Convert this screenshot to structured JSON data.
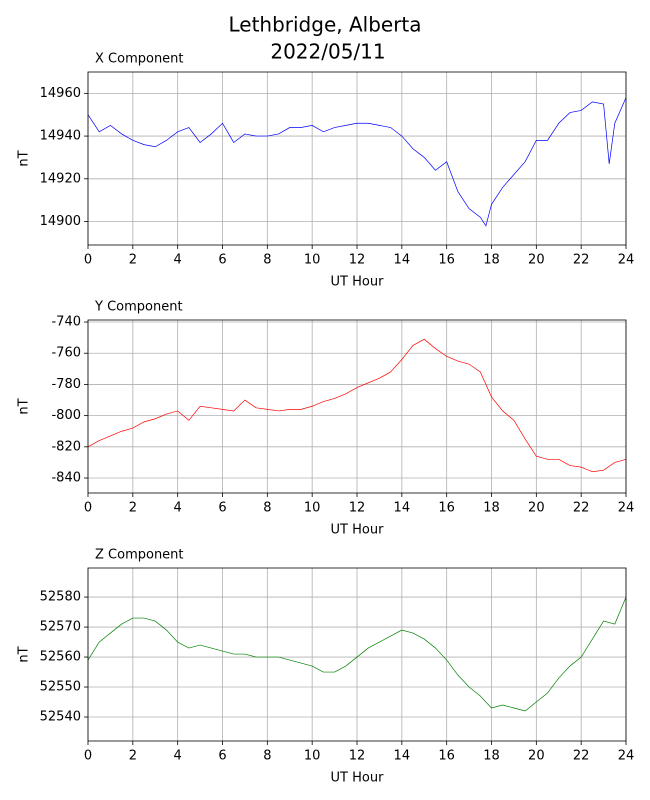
{
  "title": "Lethbridge, Alberta",
  "subtitle": "2022/05/11",
  "chart_data": [
    {
      "type": "line",
      "title": "X Component",
      "x_label": "UT Hour",
      "y_label": "nT",
      "color": "#0000ff",
      "grid": true,
      "xlim": [
        0,
        24
      ],
      "xticks": [
        0,
        2,
        4,
        6,
        8,
        10,
        12,
        14,
        16,
        18,
        20,
        22,
        24
      ],
      "ylim": [
        14889,
        14970
      ],
      "yticks": [
        14900,
        14920,
        14940,
        14960
      ],
      "x": [
        0,
        0.5,
        1,
        1.5,
        2,
        2.5,
        3,
        3.5,
        4,
        4.5,
        5,
        5.5,
        6,
        6.5,
        7,
        7.5,
        8,
        8.5,
        9,
        9.5,
        10,
        10.5,
        11,
        11.5,
        12,
        12.5,
        13,
        13.5,
        14,
        14.5,
        15,
        15.5,
        16,
        16.5,
        17,
        17.5,
        17.75,
        18,
        18.5,
        19,
        19.5,
        20,
        20.5,
        21,
        21.5,
        22,
        22.5,
        23,
        23.25,
        23.5,
        24
      ],
      "values": [
        14950,
        14942,
        14945,
        14941,
        14938,
        14936,
        14935,
        14938,
        14942,
        14944,
        14937,
        14941,
        14946,
        14937,
        14941,
        14940,
        14940,
        14941,
        14944,
        14944,
        14945,
        14942,
        14944,
        14945,
        14946,
        14946,
        14945,
        14944,
        14940,
        14934,
        14930,
        14924,
        14928,
        14914,
        14906,
        14902,
        14898,
        14908,
        14916,
        14922,
        14928,
        14938,
        14938,
        14946,
        14951,
        14952,
        14956,
        14955,
        14927,
        14946,
        14958
      ]
    },
    {
      "type": "line",
      "title": "Y Component",
      "x_label": "UT Hour",
      "y_label": "nT",
      "color": "#ff0000",
      "grid": true,
      "xlim": [
        0,
        24
      ],
      "xticks": [
        0,
        2,
        4,
        6,
        8,
        10,
        12,
        14,
        16,
        18,
        20,
        22,
        24
      ],
      "ylim": [
        -849.6,
        -738.7
      ],
      "yticks": [
        -840,
        -820,
        -800,
        -780,
        -760,
        -740
      ],
      "x": [
        0,
        0.5,
        1,
        1.5,
        2,
        2.5,
        3,
        3.5,
        4,
        4.5,
        5,
        5.5,
        6,
        6.5,
        7,
        7.5,
        8,
        8.5,
        9,
        9.5,
        10,
        10.5,
        11,
        11.5,
        12,
        12.5,
        13,
        13.5,
        14,
        14.5,
        15,
        15.5,
        16,
        16.5,
        17,
        17.5,
        18,
        18.5,
        19,
        19.5,
        20,
        20.5,
        21,
        21.5,
        22,
        22.5,
        23,
        23.5,
        24
      ],
      "values": [
        -820,
        -816,
        -813,
        -810,
        -808,
        -804,
        -802,
        -799,
        -797,
        -803,
        -794,
        -795,
        -796,
        -797,
        -790,
        -795,
        -796,
        -797,
        -796,
        -796,
        -794,
        -791,
        -789,
        -786,
        -782,
        -779,
        -776,
        -772,
        -764,
        -755,
        -751,
        -757,
        -762,
        -765,
        -767,
        -772,
        -788,
        -797,
        -803,
        -815,
        -826,
        -828,
        -828,
        -832,
        -833,
        -836,
        -835,
        -830,
        -828
      ]
    },
    {
      "type": "line",
      "title": "Z Component",
      "x_label": "UT Hour",
      "y_label": "nT",
      "color": "#008000",
      "grid": true,
      "xlim": [
        0,
        24
      ],
      "xticks": [
        0,
        2,
        4,
        6,
        8,
        10,
        12,
        14,
        16,
        18,
        20,
        22,
        24
      ],
      "ylim": [
        52532,
        52589.7
      ],
      "yticks": [
        52540,
        52550,
        52560,
        52570,
        52580
      ],
      "x": [
        0,
        0.5,
        1,
        1.5,
        2,
        2.5,
        3,
        3.5,
        4,
        4.5,
        5,
        5.5,
        6,
        6.5,
        7,
        7.5,
        8,
        8.5,
        9,
        9.5,
        10,
        10.5,
        11,
        11.5,
        12,
        12.5,
        13,
        13.5,
        14,
        14.5,
        15,
        15.5,
        16,
        16.5,
        17,
        17.5,
        18,
        18.5,
        19,
        19.5,
        20,
        20.5,
        21,
        21.5,
        22,
        22.5,
        23,
        23.5,
        24
      ],
      "values": [
        52559,
        52565,
        52568,
        52571,
        52573,
        52573,
        52572,
        52569,
        52565,
        52563,
        52564,
        52563,
        52562,
        52561,
        52561,
        52560,
        52560,
        52560,
        52559,
        52558,
        52557,
        52555,
        52555,
        52557,
        52560,
        52563,
        52565,
        52567,
        52569,
        52568,
        52566,
        52563,
        52559,
        52554,
        52550,
        52547,
        52543,
        52544,
        52543,
        52542,
        52545,
        52548,
        52553,
        52557,
        52560,
        52566,
        52572,
        52571,
        52580
      ]
    }
  ]
}
